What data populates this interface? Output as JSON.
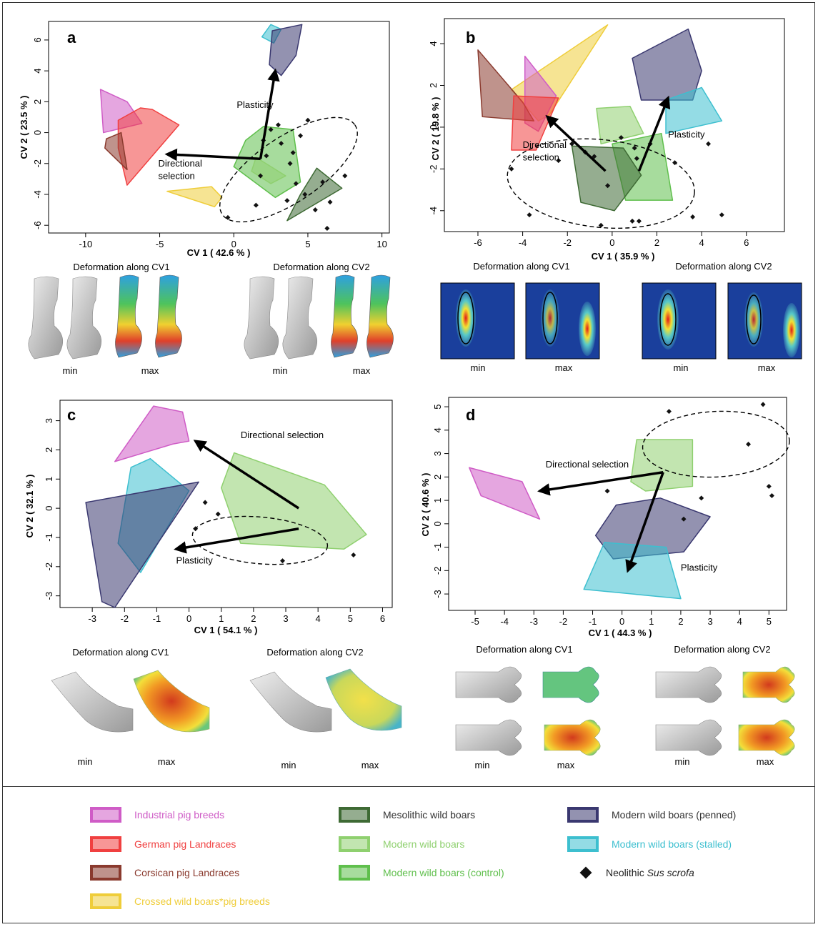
{
  "colors": {
    "industrial": "#cf5cc6",
    "german": "#f04040",
    "corsican": "#8a3a2e",
    "crossed": "#efcd3a",
    "mesolithic": "#3e6a34",
    "modern": "#8fd06f",
    "control": "#5fbf4c",
    "penned": "#3a3870",
    "stalled": "#3dbfcf",
    "neolithic": "#111111"
  },
  "chart_data": [
    {
      "panel": "a",
      "type": "scatter",
      "xlabel": "CV 1 ( 42.6 % )",
      "ylabel": "CV 2 ( 23.5 % )",
      "xlim": [
        -12.5,
        10.5
      ],
      "ylim": [
        -6.5,
        7.2
      ],
      "xticks": [
        -10,
        -5,
        0,
        5,
        10
      ],
      "yticks": [
        -6,
        -4,
        -2,
        0,
        2,
        4,
        6
      ],
      "groups": [
        {
          "g": "industrial",
          "pts": [
            [
              -9,
              2.8
            ],
            [
              -7.2,
              2
            ],
            [
              -6.2,
              0.6
            ],
            [
              -8.8,
              0
            ]
          ]
        },
        {
          "g": "german",
          "pts": [
            [
              -7.8,
              0.8
            ],
            [
              -6.3,
              1.6
            ],
            [
              -5.5,
              1.5
            ],
            [
              -3.7,
              0.5
            ],
            [
              -7.2,
              -3.4
            ],
            [
              -7.8,
              -1
            ]
          ]
        },
        {
          "g": "corsican",
          "pts": [
            [
              -8.6,
              -0.4
            ],
            [
              -7.6,
              0
            ],
            [
              -7.2,
              -2.4
            ],
            [
              -8.7,
              -1
            ]
          ]
        },
        {
          "g": "crossed",
          "pts": [
            [
              -4.5,
              -3.8
            ],
            [
              -1.5,
              -3.5
            ],
            [
              -0.8,
              -4.2
            ],
            [
              -1.3,
              -4.8
            ]
          ]
        },
        {
          "g": "control",
          "pts": [
            [
              0.8,
              -0.5
            ],
            [
              2,
              0.4
            ],
            [
              4,
              0.2
            ],
            [
              4.5,
              -3.2
            ],
            [
              2.8,
              -4.2
            ],
            [
              0,
              -2.2
            ]
          ]
        },
        {
          "g": "modern",
          "pts": [
            [
              1.5,
              -1.6
            ],
            [
              3.5,
              -2.8
            ],
            [
              2.5,
              -3.3
            ],
            [
              1.2,
              -2.5
            ]
          ]
        },
        {
          "g": "mesolithic",
          "pts": [
            [
              5.6,
              -2.3
            ],
            [
              7.3,
              -3.6
            ],
            [
              3.6,
              -5.7
            ],
            [
              4.5,
              -4
            ]
          ]
        },
        {
          "g": "stalled",
          "pts": [
            [
              2.5,
              7
            ],
            [
              3.2,
              6.7
            ],
            [
              2.7,
              5.8
            ],
            [
              1.9,
              6.2
            ]
          ]
        },
        {
          "g": "penned",
          "pts": [
            [
              2.6,
              6.6
            ],
            [
              4.6,
              7
            ],
            [
              4.2,
              5
            ],
            [
              3.2,
              3.7
            ],
            [
              2.4,
              4.4
            ]
          ]
        }
      ],
      "neolithic": [
        [
          2.5,
          0.2
        ],
        [
          3,
          0.5
        ],
        [
          4.5,
          -0.2
        ],
        [
          2.2,
          -1.5
        ],
        [
          3.2,
          -0.7
        ],
        [
          3.8,
          -2
        ],
        [
          1.8,
          -2.8
        ],
        [
          6,
          -3.2
        ],
        [
          4.8,
          -4
        ],
        [
          6.5,
          -4.5
        ],
        [
          5.5,
          -5
        ],
        [
          7.5,
          -2.8
        ],
        [
          3.6,
          -4.4
        ],
        [
          4.2,
          -3.3
        ],
        [
          1.5,
          -4.7
        ],
        [
          5,
          0.8
        ],
        [
          -0.4,
          -5.5
        ],
        [
          6.3,
          -6.2
        ],
        [
          2,
          -0.5
        ],
        [
          4,
          -1.3
        ]
      ],
      "ellipse": {
        "cx": 3.7,
        "cy": -2.4,
        "rx": 5.4,
        "ry": 2.1,
        "rot": 34
      },
      "arrows": [
        {
          "from": [
            1.8,
            -1.7
          ],
          "to": [
            -4.5,
            -1.4
          ]
        },
        {
          "from": [
            1.8,
            -1.7
          ],
          "to": [
            2.8,
            4
          ]
        }
      ],
      "annotations": [
        {
          "text": "Plasticity",
          "x": 0.2,
          "y": 1.6
        },
        {
          "text": "Directional",
          "x": -5.1,
          "y": -2.2
        },
        {
          "text": "selection",
          "x": -5.1,
          "y": -3
        }
      ]
    },
    {
      "panel": "b",
      "type": "scatter",
      "xlabel": "CV 1 ( 35.9 % )",
      "ylabel": "CV 2 ( 19.8 % )",
      "xlim": [
        -7.5,
        7.7
      ],
      "ylim": [
        -5,
        5.2
      ],
      "xticks": [
        -6,
        -4,
        -2,
        0,
        2,
        4,
        6
      ],
      "yticks": [
        -4,
        -2,
        0,
        2,
        4
      ],
      "groups": [
        {
          "g": "crossed",
          "pts": [
            [
              -4.5,
              1.8
            ],
            [
              -0.2,
              4.9
            ],
            [
              -2.8,
              0.6
            ],
            [
              -3.3,
              0.3
            ]
          ]
        },
        {
          "g": "industrial",
          "pts": [
            [
              -3.9,
              3.4
            ],
            [
              -2.5,
              1.5
            ],
            [
              -3.3,
              -0.2
            ],
            [
              -3.9,
              0.2
            ]
          ]
        },
        {
          "g": "corsican",
          "pts": [
            [
              -6,
              3.7
            ],
            [
              -4,
              1.2
            ],
            [
              -3.5,
              0.3
            ],
            [
              -5.8,
              0.5
            ]
          ]
        },
        {
          "g": "german",
          "pts": [
            [
              -4.4,
              1.5
            ],
            [
              -2.4,
              1.4
            ],
            [
              -3.4,
              -1.1
            ],
            [
              -4.5,
              -1.1
            ]
          ]
        },
        {
          "g": "modern",
          "pts": [
            [
              -0.7,
              0.9
            ],
            [
              0.8,
              1
            ],
            [
              1.4,
              -0.3
            ],
            [
              -0.5,
              -0.8
            ]
          ]
        },
        {
          "g": "control",
          "pts": [
            [
              0,
              -0.8
            ],
            [
              2.2,
              -0.3
            ],
            [
              2.7,
              -3.5
            ],
            [
              0.6,
              -3.5
            ]
          ]
        },
        {
          "g": "mesolithic",
          "pts": [
            [
              -1.8,
              -0.9
            ],
            [
              0.5,
              -1
            ],
            [
              1.3,
              -2.3
            ],
            [
              0.1,
              -4
            ],
            [
              -1.4,
              -3.6
            ]
          ]
        },
        {
          "g": "penned",
          "pts": [
            [
              0.9,
              3.3
            ],
            [
              3.4,
              4.7
            ],
            [
              4,
              2.7
            ],
            [
              3.6,
              1.3
            ],
            [
              1.3,
              1.3
            ]
          ]
        },
        {
          "g": "stalled",
          "pts": [
            [
              2.4,
              1.3
            ],
            [
              4,
              1.9
            ],
            [
              4.9,
              0.3
            ],
            [
              2.4,
              -0.3
            ]
          ]
        }
      ],
      "neolithic": [
        [
          -4.5,
          -2
        ],
        [
          -3.7,
          -4.2
        ],
        [
          -0.5,
          -4.7
        ],
        [
          0.9,
          -4.5
        ],
        [
          1.2,
          -4.5
        ],
        [
          3.6,
          -4.3
        ],
        [
          4.3,
          -0.8
        ],
        [
          4.9,
          -4.2
        ],
        [
          -1.8,
          -0.8
        ],
        [
          0.4,
          -0.5
        ],
        [
          1.7,
          -0.8
        ],
        [
          -1.2,
          -1.2
        ],
        [
          -0.8,
          -1.4
        ],
        [
          1.1,
          -1.5
        ],
        [
          2.8,
          -1.7
        ],
        [
          -2.4,
          -1.6
        ],
        [
          -0.2,
          -2.8
        ],
        [
          1,
          -1
        ]
      ],
      "ellipse": {
        "cx": -0.5,
        "cy": -2.7,
        "rx": 4.2,
        "ry": 2.1,
        "rot": -6
      },
      "arrows": [
        {
          "from": [
            -0.3,
            -2.1
          ],
          "to": [
            -2.9,
            0.5
          ]
        },
        {
          "from": [
            1.2,
            -2.1
          ],
          "to": [
            2.5,
            1.4
          ]
        }
      ],
      "annotations": [
        {
          "text": "Plasticity",
          "x": 2.5,
          "y": -0.5
        },
        {
          "text": "Directional",
          "x": -4,
          "y": -1
        },
        {
          "text": "selection",
          "x": -4,
          "y": -1.6
        }
      ]
    },
    {
      "panel": "c",
      "type": "scatter",
      "xlabel": "CV 1 ( 54.1 % )",
      "ylabel": "CV 2 ( 32.1 % )",
      "xlim": [
        -4,
        6.3
      ],
      "ylim": [
        -3.4,
        3.7
      ],
      "xticks": [
        -3,
        -2,
        -1,
        0,
        1,
        2,
        3,
        4,
        5,
        6
      ],
      "yticks": [
        -3,
        -2,
        -1,
        0,
        1,
        2,
        3
      ],
      "groups": [
        {
          "g": "industrial",
          "pts": [
            [
              -1.1,
              3.5
            ],
            [
              -0.2,
              3.3
            ],
            [
              0,
              2.3
            ],
            [
              -0.5,
              2.2
            ],
            [
              -2.3,
              1.6
            ]
          ]
        },
        {
          "g": "stalled",
          "pts": [
            [
              -1.8,
              1.4
            ],
            [
              -1.2,
              1.7
            ],
            [
              0,
              0.6
            ],
            [
              -1.5,
              -2.2
            ],
            [
              -2.2,
              -1.2
            ]
          ]
        },
        {
          "g": "penned",
          "pts": [
            [
              0.3,
              0.9
            ],
            [
              -3.2,
              0.2
            ],
            [
              -2.7,
              -3.2
            ],
            [
              -2.3,
              -3.4
            ]
          ]
        },
        {
          "g": "modern",
          "pts": [
            [
              1.4,
              1.9
            ],
            [
              4.2,
              0.8
            ],
            [
              5.5,
              -0.9
            ],
            [
              4.8,
              -1.4
            ],
            [
              1.6,
              -1.2
            ],
            [
              1,
              0.7
            ]
          ]
        }
      ],
      "neolithic": [
        [
          0.5,
          0.2
        ],
        [
          0.9,
          -0.2
        ],
        [
          0.2,
          -0.7
        ],
        [
          2.9,
          -1.8
        ],
        [
          5.1,
          -1.6
        ]
      ],
      "ellipse": {
        "cx": 2.2,
        "cy": -1.1,
        "rx": 2.1,
        "ry": 0.8,
        "rot": -5
      },
      "arrows": [
        {
          "from": [
            3.4,
            0
          ],
          "to": [
            0.2,
            2.3
          ]
        },
        {
          "from": [
            3.4,
            -0.7
          ],
          "to": [
            -0.4,
            -1.4
          ]
        }
      ],
      "annotations": [
        {
          "text": "Directional selection",
          "x": 1.6,
          "y": 2.4
        },
        {
          "text": "Plasticity",
          "x": -0.4,
          "y": -1.9
        }
      ]
    },
    {
      "panel": "d",
      "type": "scatter",
      "xlabel": "CV 1 ( 44.3 % )",
      "ylabel": "CV 2 ( 40.6 % )",
      "xlim": [
        -5.9,
        5.6
      ],
      "ylim": [
        -3.7,
        5.4
      ],
      "xticks": [
        -5,
        -4,
        -3,
        -2,
        -1,
        0,
        1,
        2,
        3,
        4,
        5
      ],
      "yticks": [
        -3,
        -2,
        -1,
        0,
        1,
        2,
        3,
        4,
        5
      ],
      "groups": [
        {
          "g": "industrial",
          "pts": [
            [
              -5.2,
              2.4
            ],
            [
              -3.4,
              1.8
            ],
            [
              -2.8,
              0.2
            ],
            [
              -4.8,
              1.2
            ]
          ]
        },
        {
          "g": "modern",
          "pts": [
            [
              0.5,
              3.6
            ],
            [
              2.4,
              3.6
            ],
            [
              2.4,
              1.6
            ],
            [
              0.8,
              1.4
            ],
            [
              0.3,
              1.8
            ]
          ]
        },
        {
          "g": "penned",
          "pts": [
            [
              -0.9,
              -0.5
            ],
            [
              -0.2,
              0.8
            ],
            [
              1.3,
              1.1
            ],
            [
              3,
              0.3
            ],
            [
              2.1,
              -1.2
            ],
            [
              -0.3,
              -1.5
            ]
          ]
        },
        {
          "g": "stalled",
          "pts": [
            [
              -0.6,
              -0.8
            ],
            [
              1.5,
              -1
            ],
            [
              2,
              -3.2
            ],
            [
              -1.3,
              -2.8
            ]
          ]
        }
      ],
      "neolithic": [
        [
          1.6,
          4.8
        ],
        [
          -0.5,
          1.4
        ],
        [
          2.7,
          1.1
        ],
        [
          2.1,
          0.2
        ],
        [
          4.3,
          3.4
        ],
        [
          4.8,
          5.1
        ],
        [
          5,
          1.6
        ],
        [
          5.1,
          1.2
        ]
      ],
      "ellipse": {
        "cx": 3.2,
        "cy": 3.4,
        "rx": 2.5,
        "ry": 1.4,
        "rot": 3
      },
      "arrows": [
        {
          "from": [
            1.4,
            2.2
          ],
          "to": [
            -2.8,
            1.4
          ]
        },
        {
          "from": [
            1.4,
            2.2
          ],
          "to": [
            0.2,
            -2
          ]
        }
      ],
      "annotations": [
        {
          "text": "Directional selection",
          "x": -2.6,
          "y": 2.4
        },
        {
          "text": "Plasticity",
          "x": 2,
          "y": -2
        }
      ]
    }
  ],
  "panels": {
    "a": {
      "label": "a",
      "def_cv1": "Deformation along CV1",
      "def_cv2": "Deformation along CV2",
      "min": "min",
      "max": "max"
    },
    "b": {
      "label": "b",
      "def_cv1": "Deformation along CV1",
      "def_cv2": "Deformation along CV2",
      "min": "min",
      "max": "max"
    },
    "c": {
      "label": "c",
      "def_cv1": "Deformation along CV1",
      "def_cv2": "Deformation along CV2",
      "min": "min",
      "max": "max"
    },
    "d": {
      "label": "d",
      "def_cv1": "Deformation along CV1",
      "def_cv2": "Deformation along CV2",
      "min": "min",
      "max": "max"
    }
  },
  "legend": {
    "industrial": "Industrial pig breeds",
    "german": "German pig Landraces",
    "corsican": "Corsican pig Landraces",
    "crossed": "Crossed wild boars*pig breeds",
    "mesolithic": "Mesolithic wild boars",
    "modern": "Modern wild boars",
    "control": "Modern wild boars (control)",
    "penned": "Modern wild boars (penned)",
    "stalled": "Modern wild boars (stalled)",
    "neolithic_prefix": "Neolithic ",
    "neolithic_species": "Sus scrofa"
  }
}
